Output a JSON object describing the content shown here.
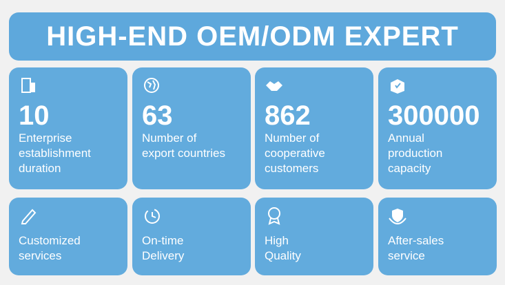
{
  "header": {
    "title": "HIGH-END OEM/ODM EXPERT"
  },
  "stats": [
    {
      "value": 10,
      "label": [
        "Enterprise",
        "establishment",
        "duration"
      ]
    },
    {
      "value": 63,
      "label": [
        "Number of",
        "export countries"
      ]
    },
    {
      "value": 862,
      "label": [
        "Number of",
        "cooperative",
        "customers"
      ]
    },
    {
      "value": 300000,
      "label": [
        "Annual",
        "production",
        "capacity"
      ]
    }
  ],
  "features": [
    {
      "label": [
        "Customized",
        "services"
      ]
    },
    {
      "label": [
        "On-time",
        "Delivery"
      ]
    },
    {
      "label": [
        "High",
        "Quality"
      ]
    },
    {
      "label": [
        "After-sales",
        "service"
      ]
    }
  ]
}
